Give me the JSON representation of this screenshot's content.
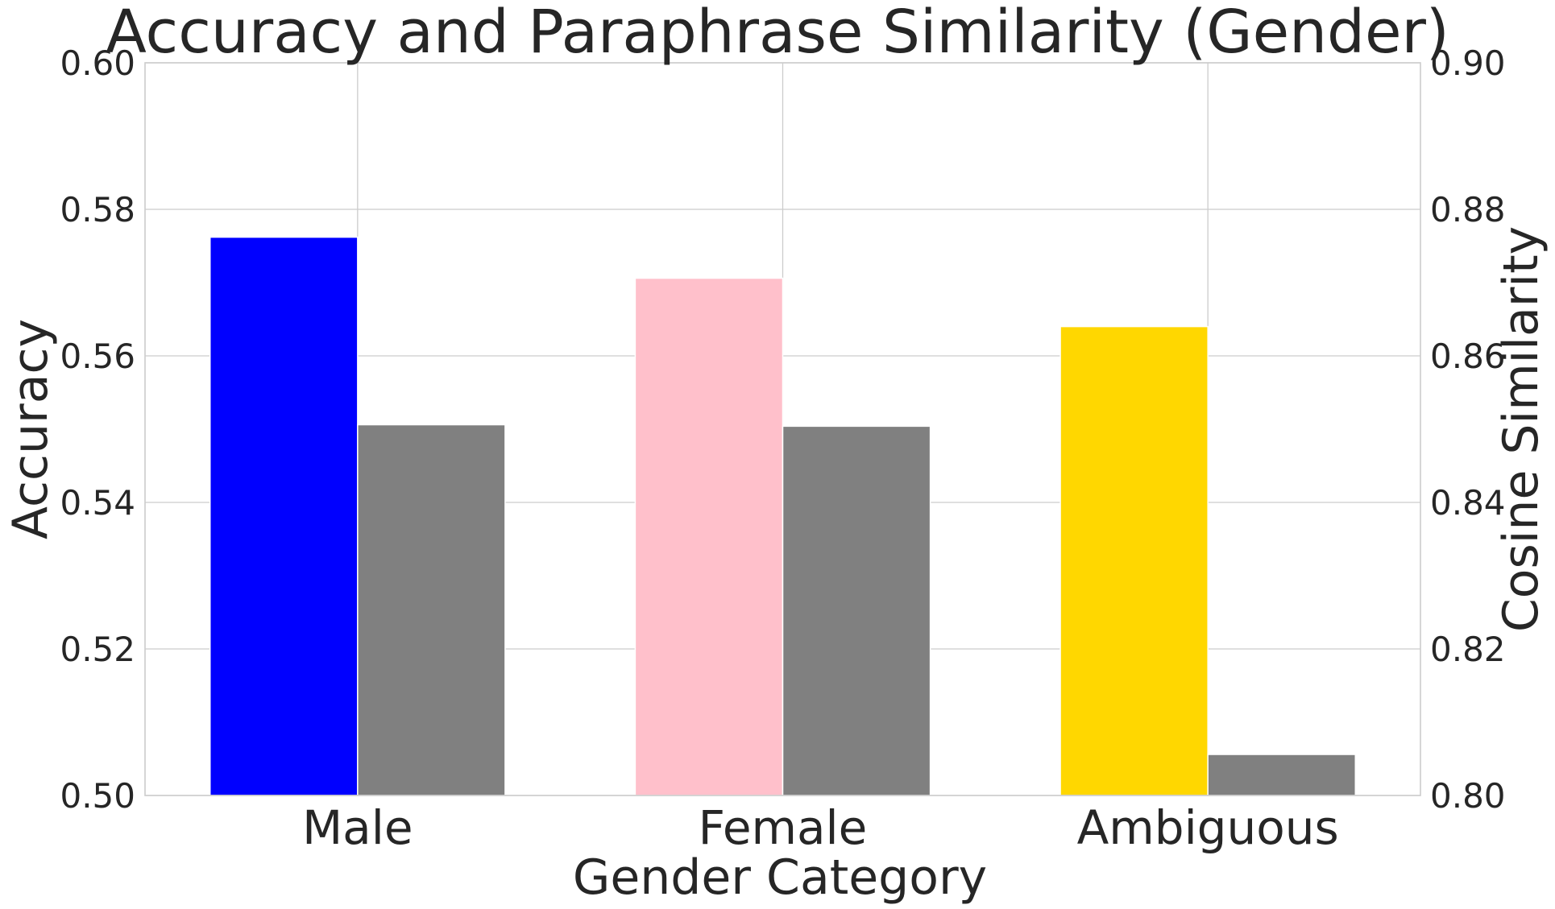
{
  "chart_data": {
    "type": "bar",
    "title": "Accuracy and Paraphrase Similarity (Gender)",
    "xlabel": "Gender Category",
    "ylabel_left": "Accuracy",
    "ylabel_right": "Cosine Similarity",
    "categories": [
      "Male",
      "Female",
      "Ambiguous"
    ],
    "series": [
      {
        "name": "Accuracy",
        "axis": "left",
        "values": [
          0.5762,
          0.5706,
          0.564
        ],
        "colors": [
          "#0000ff",
          "#ffc0cb",
          "#ffd700"
        ]
      },
      {
        "name": "Cosine Similarity",
        "axis": "right",
        "values": [
          0.8506,
          0.8504,
          0.8056
        ],
        "colors": [
          "#808080",
          "#808080",
          "#808080"
        ]
      }
    ],
    "ylim_left": [
      0.5,
      0.6
    ],
    "ylim_right": [
      0.8,
      0.9
    ],
    "yticks_left": [
      "0.50",
      "0.52",
      "0.54",
      "0.56",
      "0.58",
      "0.60"
    ],
    "yticks_right": [
      "0.80",
      "0.82",
      "0.84",
      "0.86",
      "0.88",
      "0.90"
    ],
    "grid": true
  }
}
